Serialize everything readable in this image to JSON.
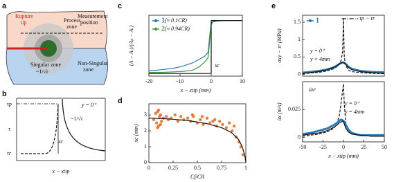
{
  "diagram": {
    "panel": "a",
    "rupture_tip": [
      "Rupture",
      "tip"
    ],
    "process_zone": [
      "Process",
      "zone"
    ],
    "measurement": [
      "Measurement",
      "position"
    ],
    "singular_zone": [
      "Singular zone",
      "~1/√r"
    ],
    "non_singular_zone": [
      "Non-Singular",
      "zone"
    ]
  },
  "schematic": {
    "panel": "b",
    "ylabel": "τ",
    "tau_p": "τp",
    "tau_r": "τr",
    "xlabel": "x − xtip",
    "curve_label": "y = 0⁺",
    "decay": "~1/√r",
    "xc": "xc"
  },
  "chart_data": [
    {
      "type": "line",
      "panel": "c",
      "xlabel": "x − xtip (mm)",
      "ylabel": "(A − Aᵣ)/(Aₚ − Aᵣ)",
      "xlim": [
        -20,
        10
      ],
      "xticks": [
        -20,
        -10,
        0,
        10
      ],
      "ylim": [
        -0.05,
        1.1
      ],
      "yticks": [],
      "series": [
        {
          "name": "1",
          "color": "#2a7ab8",
          "style": "solid",
          "marker": true,
          "x": [
            -20,
            -16,
            -12,
            -9,
            -6,
            -4,
            -2,
            -1,
            -0.5,
            0,
            0.5,
            2,
            5,
            10
          ],
          "values": [
            0.05,
            0.07,
            0.1,
            0.14,
            0.2,
            0.26,
            0.33,
            0.4,
            0.7,
            0.95,
            0.98,
            1.0,
            1.0,
            1.0
          ]
        },
        {
          "name": "2",
          "color": "#3a9a3a",
          "style": "solid",
          "marker": true,
          "x": [
            -20,
            -16,
            -12,
            -9,
            -6,
            -4,
            -2,
            -1,
            -0.5,
            0,
            0.5,
            2,
            5,
            10
          ],
          "values": [
            0.02,
            0.02,
            0.03,
            0.04,
            0.06,
            0.12,
            0.22,
            0.3,
            0.6,
            0.92,
            0.97,
            0.99,
            1.0,
            1.0
          ]
        },
        {
          "color": "#111111",
          "style": "solid",
          "x": [
            -20,
            0,
            0,
            10
          ],
          "values": [
            0,
            0,
            1,
            1
          ]
        }
      ],
      "annotations": [
        "(≈ 0.1CR)",
        "(≈ 0.94CR)",
        "xc"
      ]
    },
    {
      "type": "scatter",
      "panel": "d",
      "xlabel": "Cf/CR",
      "ylabel": "xc (mm)",
      "xlim": [
        0,
        1
      ],
      "xticks": [
        0,
        0.25,
        0.5,
        0.75,
        1
      ],
      "ylim": [
        0,
        3.7
      ],
      "yticks": [
        0,
        1,
        2,
        3
      ],
      "series": [
        {
          "kind": "scatter",
          "color": "#e06a1e",
          "x": [
            0.05,
            0.07,
            0.08,
            0.09,
            0.1,
            0.11,
            0.12,
            0.13,
            0.15,
            0.18,
            0.2,
            0.23,
            0.27,
            0.3,
            0.33,
            0.36,
            0.4,
            0.43,
            0.46,
            0.5,
            0.53,
            0.56,
            0.6,
            0.63,
            0.66,
            0.7,
            0.73,
            0.76,
            0.8,
            0.83,
            0.86,
            0.88,
            0.9,
            0.93,
            0.95,
            0.97,
            0.09,
            0.1,
            0.12,
            0.45,
            0.55,
            0.68
          ],
          "values": [
            2.7,
            3.1,
            2.5,
            3.2,
            2.3,
            2.9,
            3.0,
            2.6,
            2.8,
            2.9,
            2.7,
            2.8,
            3.0,
            2.6,
            2.9,
            2.7,
            2.8,
            2.6,
            2.9,
            2.5,
            2.7,
            2.4,
            2.8,
            2.5,
            2.6,
            2.3,
            2.6,
            2.4,
            2.2,
            2.5,
            2.0,
            2.3,
            1.6,
            1.3,
            1.0,
            0.5,
            2.2,
            3.3,
            2.4,
            3.0,
            2.9,
            2.7
          ]
        },
        {
          "kind": "line",
          "color": "#111111",
          "style": "solid",
          "x": [
            0,
            0.2,
            0.4,
            0.6,
            0.75,
            0.85,
            0.92,
            0.96,
            0.99,
            1
          ],
          "values": [
            2.8,
            2.75,
            2.65,
            2.45,
            2.2,
            1.9,
            1.5,
            1.05,
            0.45,
            0
          ]
        }
      ]
    },
    {
      "type": "line",
      "panel": "e",
      "ylabel": "σxy − τr (MPa)",
      "xlim": [
        -50,
        50
      ],
      "ylim": [
        -0.05,
        1.7
      ],
      "yticks": [
        0,
        0.5,
        1,
        1.5
      ],
      "series": [
        {
          "color": "#111111",
          "style": "dashed",
          "x": [
            -50,
            -30,
            -20,
            -12,
            -8,
            -5,
            -3,
            -1,
            0,
            1,
            3,
            6,
            10,
            20,
            35,
            50
          ],
          "values": [
            0.02,
            0.06,
            0.1,
            0.16,
            0.22,
            0.3,
            0.4,
            0.65,
            1.6,
            0.5,
            0.25,
            0.12,
            0.08,
            0.05,
            0.03,
            0.02
          ]
        },
        {
          "name": "1",
          "color": "#2a7ab8",
          "style": "solid",
          "width": 3,
          "marker": true,
          "x": [
            -50,
            -40,
            -30,
            -20,
            -12,
            -8,
            -5,
            -3,
            0,
            3,
            6,
            10,
            20,
            35,
            50
          ],
          "values": [
            0.05,
            0.07,
            0.1,
            0.14,
            0.2,
            0.25,
            0.3,
            0.33,
            0.34,
            0.3,
            0.22,
            0.16,
            0.1,
            0.07,
            0.06
          ]
        },
        {
          "color": "#111111",
          "style": "solid",
          "x": [
            -50,
            -30,
            -20,
            -12,
            -8,
            -5,
            -3,
            -1,
            0,
            1,
            3,
            6,
            10,
            20,
            35,
            50
          ],
          "values": [
            0.03,
            0.08,
            0.13,
            0.2,
            0.25,
            0.3,
            0.33,
            0.35,
            0.35,
            0.33,
            0.28,
            0.2,
            0.14,
            0.08,
            0.05,
            0.03
          ]
        },
        {
          "color": "#111111",
          "style": "dashdot",
          "x": [
            -2,
            18
          ],
          "values": [
            1.6,
            1.6
          ]
        }
      ],
      "annotations": [
        "y = 0⁺",
        "y = 4mm",
        "τp − τr"
      ]
    },
    {
      "type": "line",
      "xlabel": "x − xtip (mm)",
      "ylabel": "u̇x (m/s)",
      "xlim": [
        -50,
        50
      ],
      "xticks": [
        -50,
        -25,
        0,
        25,
        50
      ],
      "ylim": [
        -0.004,
        0.05
      ],
      "yticks": [
        0,
        0.025
      ],
      "series": [
        {
          "color": "#111111",
          "style": "dashed",
          "x": [
            -50,
            -30,
            -20,
            -12,
            -8,
            -5,
            -3,
            -1,
            0,
            1,
            3,
            6,
            10,
            20,
            35,
            50
          ],
          "values": [
            0.001,
            0.003,
            0.005,
            0.008,
            0.012,
            0.02,
            0.03,
            0.042,
            0.048,
            0.03,
            0.012,
            0.005,
            0.003,
            0.002,
            0.001,
            0.001
          ]
        },
        {
          "color": "#2a7ab8",
          "style": "solid",
          "width": 3,
          "x": [
            -50,
            -40,
            -30,
            -20,
            -12,
            -8,
            -5,
            -3,
            0,
            3,
            6,
            10,
            20,
            35,
            50
          ],
          "values": [
            0.003,
            0.004,
            0.006,
            0.008,
            0.011,
            0.013,
            0.015,
            0.016,
            0.015,
            0.011,
            0.007,
            0.004,
            0.002,
            0.002,
            0.002
          ]
        },
        {
          "color": "#111111",
          "style": "solid",
          "x": [
            -50,
            -30,
            -20,
            -12,
            -8,
            -5,
            -3,
            -1,
            0,
            1,
            3,
            6,
            10,
            20,
            35,
            50
          ],
          "values": [
            0.002,
            0.004,
            0.006,
            0.009,
            0.011,
            0.013,
            0.014,
            0.0145,
            0.014,
            0.012,
            0.008,
            0.005,
            0.003,
            0.002,
            0.001,
            0.001
          ]
        }
      ],
      "annotations": [
        "u̇xᵖ",
        "y = 0⁺",
        "y = 4mm"
      ]
    }
  ]
}
